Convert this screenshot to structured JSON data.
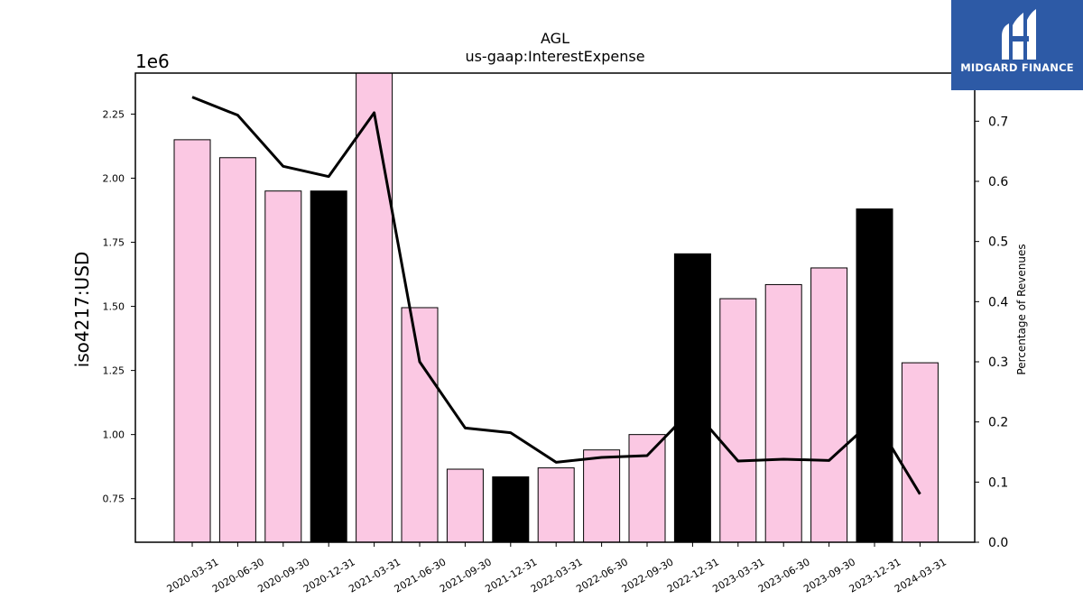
{
  "chart_data": {
    "type": "bar",
    "title": "AGL",
    "subtitle": "us-gaap:InterestExpense",
    "ylabel": "iso4217:USD",
    "y_multiplier": "1e6",
    "y2label": "Percentage of Revenues",
    "ylim": [
      0.58,
      2.41
    ],
    "y2lim": [
      0.0,
      0.78
    ],
    "y_ticks": [
      "0.75",
      "1.00",
      "1.25",
      "1.50",
      "1.75",
      "2.00",
      "2.25"
    ],
    "y2_ticks": [
      "0.0",
      "0.1",
      "0.2",
      "0.3",
      "0.4",
      "0.5",
      "0.6",
      "0.7"
    ],
    "categories": [
      "2020-03-31",
      "2020-06-30",
      "2020-09-30",
      "2020-12-31",
      "2021-03-31",
      "2021-06-30",
      "2021-09-30",
      "2021-12-31",
      "2022-03-31",
      "2022-06-30",
      "2022-09-30",
      "2022-12-31",
      "2023-03-31",
      "2023-06-30",
      "2023-09-30",
      "2023-12-31",
      "2024-03-31"
    ],
    "series": [
      {
        "type": "bar",
        "values": [
          2.15,
          2.08,
          1.95,
          1.95,
          2.41,
          1.495,
          0.865,
          0.835,
          0.87,
          0.94,
          1.0,
          1.705,
          1.53,
          1.585,
          1.65,
          1.88,
          1.28
        ],
        "highlight": [
          false,
          false,
          false,
          true,
          false,
          false,
          false,
          true,
          false,
          false,
          false,
          true,
          false,
          false,
          false,
          true,
          false
        ]
      },
      {
        "type": "line",
        "axis": "right",
        "values": [
          0.74,
          0.71,
          0.625,
          0.608,
          0.714,
          0.3,
          0.19,
          0.182,
          0.133,
          0.141,
          0.144,
          0.222,
          0.135,
          0.138,
          0.136,
          0.205,
          0.08
        ]
      }
    ],
    "colors": {
      "bar": "#fbc8e3",
      "bar_highlight": "#000000",
      "line": "#000000"
    }
  },
  "logo": {
    "text": "MIDGARD FINANCE",
    "background": "#2d5aa6"
  }
}
